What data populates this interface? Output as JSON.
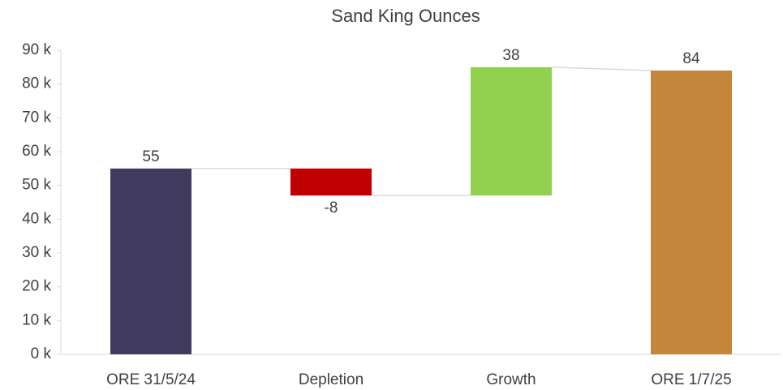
{
  "chart_data": {
    "type": "waterfall",
    "title": "Sand King Ounces",
    "categories": [
      "ORE 31/5/24",
      "Depletion",
      "Growth",
      "ORE 1/7/25"
    ],
    "values": [
      55,
      -8,
      38,
      84
    ],
    "measures": [
      "absolute",
      "relative",
      "relative",
      "total"
    ],
    "colors": [
      "#3f3a5e",
      "#c00000",
      "#92d050",
      "#c4863a"
    ],
    "connector_color": "#d9d9d9",
    "ylim": [
      0,
      90
    ],
    "yticks": [
      {
        "value": 0,
        "label": "0 k"
      },
      {
        "value": 10,
        "label": "10 k"
      },
      {
        "value": 20,
        "label": "20 k"
      },
      {
        "value": 30,
        "label": "30 k"
      },
      {
        "value": 40,
        "label": "40 k"
      },
      {
        "value": 50,
        "label": "50 k"
      },
      {
        "value": 60,
        "label": "60 k"
      },
      {
        "value": 70,
        "label": "70 k"
      },
      {
        "value": 80,
        "label": "80 k"
      },
      {
        "value": 90,
        "label": "90 k"
      }
    ],
    "grid": false
  }
}
